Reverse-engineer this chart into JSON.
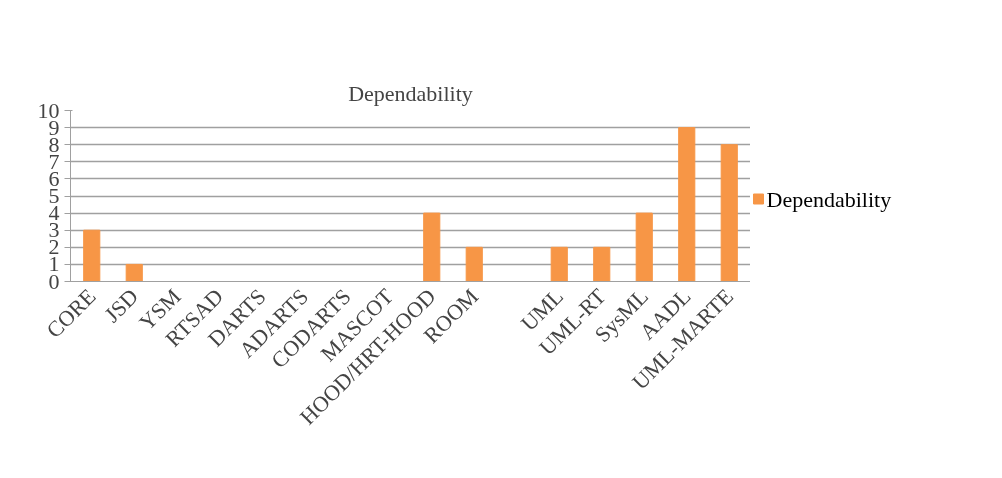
{
  "chart_data": {
    "type": "bar",
    "title": "Dependability",
    "categories": [
      "CORE",
      "JSD",
      "YSM",
      "RTSAD",
      "DARTS",
      "ADARTS",
      "CODARTS",
      "MASCOT",
      "HOOD/HRT-HOOD",
      "ROOM",
      null,
      "UML",
      "UML-RT",
      "SysML",
      "AADL",
      "UML-MARTE"
    ],
    "series": [
      {
        "name": "Dependability",
        "color": "#f79646",
        "values": [
          3,
          1,
          0,
          0,
          0,
          0,
          0,
          0,
          4,
          2,
          0,
          2,
          2,
          4,
          9,
          8
        ]
      }
    ],
    "ylim": [
      0,
      10
    ],
    "yticks": [
      0,
      1,
      2,
      3,
      4,
      5,
      6,
      7,
      8,
      9,
      10
    ],
    "grid": "y",
    "legend": "right"
  }
}
